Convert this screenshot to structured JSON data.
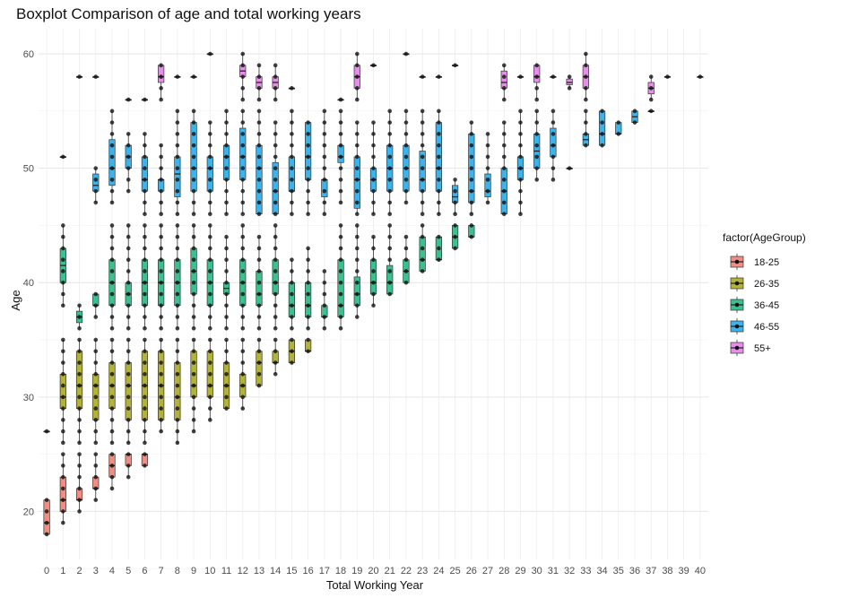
{
  "chart_data": {
    "type": "boxplot",
    "title": "Boxplot Comparison of age and total working years",
    "xlabel": "Total Working Year",
    "ylabel": "Age",
    "x_categories": [
      "0",
      "1",
      "2",
      "3",
      "4",
      "5",
      "6",
      "7",
      "8",
      "9",
      "10",
      "11",
      "12",
      "13",
      "14",
      "15",
      "16",
      "17",
      "18",
      "19",
      "20",
      "21",
      "22",
      "23",
      "24",
      "25",
      "26",
      "27",
      "28",
      "29",
      "30",
      "31",
      "32",
      "33",
      "34",
      "35",
      "36",
      "37",
      "38",
      "39",
      "40"
    ],
    "ylim": [
      15.8,
      62.2
    ],
    "yticks": [
      20,
      30,
      40,
      50,
      60
    ],
    "grid": true,
    "legend": {
      "title": "factor(AgeGroup)",
      "position": "right",
      "entries": [
        {
          "name": "18-25",
          "color": "#F08E86"
        },
        {
          "name": "26-35",
          "color": "#B3B33A"
        },
        {
          "name": "36-45",
          "color": "#3CC08F"
        },
        {
          "name": "46-55",
          "color": "#3DB3EC"
        },
        {
          "name": "55+",
          "color": "#E78EEA"
        }
      ]
    },
    "series": [
      {
        "name": "18-25",
        "boxes": [
          {
            "x": 0,
            "q1": 18,
            "median": 19,
            "q3": 21,
            "lo": 18,
            "hi": 21
          },
          {
            "x": 1,
            "q1": 20,
            "median": 21,
            "q3": 23,
            "lo": 19,
            "hi": 25
          },
          {
            "x": 2,
            "q1": 21,
            "median": 21,
            "q3": 22,
            "lo": 20,
            "hi": 25
          },
          {
            "x": 3,
            "q1": 22,
            "median": 22,
            "q3": 23,
            "lo": 21,
            "hi": 25
          },
          {
            "x": 4,
            "q1": 23,
            "median": 24,
            "q3": 25,
            "lo": 22,
            "hi": 25
          },
          {
            "x": 5,
            "q1": 24,
            "median": 25,
            "q3": 25,
            "lo": 23,
            "hi": 25
          },
          {
            "x": 6,
            "q1": 24,
            "median": 25,
            "q3": 25,
            "lo": 24,
            "hi": 25
          }
        ]
      },
      {
        "name": "26-35",
        "boxes": [
          {
            "x": 0,
            "q1": 27,
            "median": 27,
            "q3": 27,
            "lo": 27,
            "hi": 27
          },
          {
            "x": 1,
            "q1": 29,
            "median": 30,
            "q3": 32,
            "lo": 26,
            "hi": 35
          },
          {
            "x": 2,
            "q1": 29,
            "median": 31,
            "q3": 34,
            "lo": 26,
            "hi": 35
          },
          {
            "x": 3,
            "q1": 28,
            "median": 31,
            "q3": 32,
            "lo": 26,
            "hi": 35
          },
          {
            "x": 4,
            "q1": 29,
            "median": 31,
            "q3": 33,
            "lo": 26,
            "hi": 35
          },
          {
            "x": 5,
            "q1": 28,
            "median": 31,
            "q3": 33,
            "lo": 26,
            "hi": 35
          },
          {
            "x": 6,
            "q1": 28,
            "median": 31,
            "q3": 34,
            "lo": 26,
            "hi": 35
          },
          {
            "x": 7,
            "q1": 28,
            "median": 31,
            "q3": 34,
            "lo": 27,
            "hi": 35
          },
          {
            "x": 8,
            "q1": 28,
            "median": 30,
            "q3": 33,
            "lo": 26,
            "hi": 35
          },
          {
            "x": 9,
            "q1": 30,
            "median": 31,
            "q3": 34,
            "lo": 27,
            "hi": 35
          },
          {
            "x": 10,
            "q1": 30,
            "median": 31,
            "q3": 34,
            "lo": 28,
            "hi": 35
          },
          {
            "x": 11,
            "q1": 29,
            "median": 31,
            "q3": 33,
            "lo": 29,
            "hi": 35
          },
          {
            "x": 12,
            "q1": 30,
            "median": 31,
            "q3": 32,
            "lo": 29,
            "hi": 35
          },
          {
            "x": 13,
            "q1": 31,
            "median": 33,
            "q3": 34,
            "lo": 31,
            "hi": 35
          },
          {
            "x": 14,
            "q1": 33,
            "median": 33,
            "q3": 34,
            "lo": 32,
            "hi": 35
          },
          {
            "x": 15,
            "q1": 33,
            "median": 34,
            "q3": 35,
            "lo": 33,
            "hi": 35
          },
          {
            "x": 16,
            "q1": 34,
            "median": 34,
            "q3": 35,
            "lo": 34,
            "hi": 35
          }
        ]
      },
      {
        "name": "36-45",
        "boxes": [
          {
            "x": 1,
            "q1": 40,
            "median": 41.5,
            "q3": 43,
            "lo": 38,
            "hi": 45
          },
          {
            "x": 2,
            "q1": 36.5,
            "median": 37,
            "q3": 37.5,
            "lo": 36,
            "hi": 38
          },
          {
            "x": 3,
            "q1": 38,
            "median": 38,
            "q3": 39,
            "lo": 37,
            "hi": 39
          },
          {
            "x": 4,
            "q1": 38,
            "median": 40,
            "q3": 42,
            "lo": 36,
            "hi": 45
          },
          {
            "x": 5,
            "q1": 38,
            "median": 39,
            "q3": 40,
            "lo": 36,
            "hi": 45
          },
          {
            "x": 6,
            "q1": 38,
            "median": 40,
            "q3": 42,
            "lo": 36,
            "hi": 45
          },
          {
            "x": 7,
            "q1": 38,
            "median": 40,
            "q3": 42,
            "lo": 36,
            "hi": 45
          },
          {
            "x": 8,
            "q1": 38,
            "median": 40,
            "q3": 42,
            "lo": 36,
            "hi": 45
          },
          {
            "x": 9,
            "q1": 39,
            "median": 41,
            "q3": 43,
            "lo": 36,
            "hi": 45
          },
          {
            "x": 10,
            "q1": 38,
            "median": 40,
            "q3": 42,
            "lo": 36,
            "hi": 45
          },
          {
            "x": 11,
            "q1": 39,
            "median": 39.5,
            "q3": 40,
            "lo": 36,
            "hi": 44
          },
          {
            "x": 12,
            "q1": 38,
            "median": 40,
            "q3": 42,
            "lo": 36,
            "hi": 45
          },
          {
            "x": 13,
            "q1": 38,
            "median": 39,
            "q3": 41,
            "lo": 36,
            "hi": 44
          },
          {
            "x": 14,
            "q1": 39,
            "median": 40,
            "q3": 42,
            "lo": 36,
            "hi": 45
          },
          {
            "x": 15,
            "q1": 37,
            "median": 38,
            "q3": 40,
            "lo": 36,
            "hi": 42
          },
          {
            "x": 16,
            "q1": 37,
            "median": 38,
            "q3": 40,
            "lo": 36,
            "hi": 43
          },
          {
            "x": 17,
            "q1": 37,
            "median": 37,
            "q3": 38,
            "lo": 36,
            "hi": 41
          },
          {
            "x": 18,
            "q1": 37,
            "median": 38,
            "q3": 42,
            "lo": 36,
            "hi": 45
          },
          {
            "x": 19,
            "q1": 38,
            "median": 39,
            "q3": 40.5,
            "lo": 37,
            "hi": 45
          },
          {
            "x": 20,
            "q1": 39,
            "median": 40,
            "q3": 42,
            "lo": 38,
            "hi": 44
          },
          {
            "x": 21,
            "q1": 39,
            "median": 40,
            "q3": 41.5,
            "lo": 39,
            "hi": 45
          },
          {
            "x": 22,
            "q1": 40,
            "median": 41,
            "q3": 42,
            "lo": 40,
            "hi": 44
          },
          {
            "x": 23,
            "q1": 41,
            "median": 42,
            "q3": 44,
            "lo": 41,
            "hi": 45
          },
          {
            "x": 24,
            "q1": 42,
            "median": 42,
            "q3": 44,
            "lo": 42,
            "hi": 44
          },
          {
            "x": 25,
            "q1": 43,
            "median": 44,
            "q3": 45,
            "lo": 43,
            "hi": 45
          },
          {
            "x": 26,
            "q1": 44,
            "median": 44,
            "q3": 45,
            "lo": 44,
            "hi": 45
          }
        ]
      },
      {
        "name": "46-55",
        "boxes": [
          {
            "x": 1,
            "q1": 51,
            "median": 51,
            "q3": 51,
            "lo": 51,
            "hi": 51
          },
          {
            "x": 3,
            "q1": 48,
            "median": 48.5,
            "q3": 49.5,
            "lo": 47,
            "hi": 50
          },
          {
            "x": 4,
            "q1": 48.5,
            "median": 50,
            "q3": 52.5,
            "lo": 47,
            "hi": 55
          },
          {
            "x": 5,
            "q1": 50,
            "median": 51,
            "q3": 52,
            "lo": 48,
            "hi": 53
          },
          {
            "x": 6,
            "q1": 48,
            "median": 49,
            "q3": 51,
            "lo": 46,
            "hi": 53
          },
          {
            "x": 7,
            "q1": 48,
            "median": 49,
            "q3": 49,
            "lo": 46,
            "hi": 52
          },
          {
            "x": 8,
            "q1": 47.5,
            "median": 49.5,
            "q3": 51,
            "lo": 46,
            "hi": 55
          },
          {
            "x": 9,
            "q1": 48,
            "median": 50,
            "q3": 54,
            "lo": 46,
            "hi": 55
          },
          {
            "x": 10,
            "q1": 48,
            "median": 50,
            "q3": 51,
            "lo": 46,
            "hi": 54
          },
          {
            "x": 11,
            "q1": 49,
            "median": 51,
            "q3": 52,
            "lo": 46,
            "hi": 55
          },
          {
            "x": 12,
            "q1": 49,
            "median": 51,
            "q3": 53.5,
            "lo": 46,
            "hi": 55
          },
          {
            "x": 13,
            "q1": 46,
            "median": 50,
            "q3": 52,
            "lo": 46,
            "hi": 55
          },
          {
            "x": 14,
            "q1": 46,
            "median": 48,
            "q3": 50.5,
            "lo": 46,
            "hi": 54
          },
          {
            "x": 15,
            "q1": 48,
            "median": 48,
            "q3": 51,
            "lo": 46,
            "hi": 55
          },
          {
            "x": 16,
            "q1": 49,
            "median": 51,
            "q3": 54,
            "lo": 46,
            "hi": 54
          },
          {
            "x": 17,
            "q1": 47.5,
            "median": 49,
            "q3": 49,
            "lo": 46,
            "hi": 55
          },
          {
            "x": 18,
            "q1": 50.5,
            "median": 51,
            "q3": 52,
            "lo": 47,
            "hi": 55
          },
          {
            "x": 19,
            "q1": 46.5,
            "median": 49,
            "q3": 51,
            "lo": 46,
            "hi": 54
          },
          {
            "x": 20,
            "q1": 48,
            "median": 49,
            "q3": 50,
            "lo": 46,
            "hi": 54
          },
          {
            "x": 21,
            "q1": 48,
            "median": 50,
            "q3": 52,
            "lo": 46,
            "hi": 55
          },
          {
            "x": 22,
            "q1": 48,
            "median": 50,
            "q3": 52,
            "lo": 47,
            "hi": 55
          },
          {
            "x": 23,
            "q1": 48,
            "median": 49,
            "q3": 51.5,
            "lo": 46,
            "hi": 55
          },
          {
            "x": 24,
            "q1": 48,
            "median": 50,
            "q3": 54,
            "lo": 46,
            "hi": 55
          },
          {
            "x": 25,
            "q1": 47,
            "median": 47.5,
            "q3": 48.5,
            "lo": 46,
            "hi": 49
          },
          {
            "x": 26,
            "q1": 47,
            "median": 48,
            "q3": 53,
            "lo": 46,
            "hi": 54
          },
          {
            "x": 27,
            "q1": 47.5,
            "median": 48,
            "q3": 49.5,
            "lo": 47,
            "hi": 53
          },
          {
            "x": 28,
            "q1": 46,
            "median": 48,
            "q3": 50,
            "lo": 46,
            "hi": 54
          },
          {
            "x": 29,
            "q1": 49,
            "median": 50,
            "q3": 51,
            "lo": 46,
            "hi": 55
          },
          {
            "x": 30,
            "q1": 50,
            "median": 51.5,
            "q3": 53,
            "lo": 49,
            "hi": 55
          },
          {
            "x": 31,
            "q1": 51,
            "median": 52,
            "q3": 53.5,
            "lo": 49,
            "hi": 55
          },
          {
            "x": 32,
            "q1": 50,
            "median": 50,
            "q3": 50,
            "lo": 50,
            "hi": 50
          },
          {
            "x": 33,
            "q1": 52,
            "median": 52.5,
            "q3": 53,
            "lo": 52,
            "hi": 55
          },
          {
            "x": 34,
            "q1": 52,
            "median": 53,
            "q3": 55,
            "lo": 52,
            "hi": 55
          },
          {
            "x": 35,
            "q1": 53,
            "median": 53,
            "q3": 54,
            "lo": 53,
            "hi": 54
          },
          {
            "x": 36,
            "q1": 54,
            "median": 54.5,
            "q3": 55,
            "lo": 54,
            "hi": 55
          },
          {
            "x": 37,
            "q1": 55,
            "median": 55,
            "q3": 55,
            "lo": 55,
            "hi": 55
          }
        ]
      },
      {
        "name": "55+",
        "boxes": [
          {
            "x": 2,
            "q1": 58,
            "median": 58,
            "q3": 58,
            "lo": 58,
            "hi": 58
          },
          {
            "x": 3,
            "q1": 58,
            "median": 58,
            "q3": 58,
            "lo": 58,
            "hi": 58
          },
          {
            "x": 5,
            "q1": 56,
            "median": 56,
            "q3": 56,
            "lo": 56,
            "hi": 56
          },
          {
            "x": 6,
            "q1": 56,
            "median": 56,
            "q3": 56,
            "lo": 56,
            "hi": 56
          },
          {
            "x": 7,
            "q1": 57.5,
            "median": 58,
            "q3": 59,
            "lo": 56,
            "hi": 59
          },
          {
            "x": 8,
            "q1": 58,
            "median": 58,
            "q3": 58,
            "lo": 58,
            "hi": 58
          },
          {
            "x": 9,
            "q1": 58,
            "median": 58,
            "q3": 58,
            "lo": 58,
            "hi": 58
          },
          {
            "x": 10,
            "q1": 60,
            "median": 60,
            "q3": 60,
            "lo": 60,
            "hi": 60
          },
          {
            "x": 12,
            "q1": 58,
            "median": 58.5,
            "q3": 59,
            "lo": 56,
            "hi": 60
          },
          {
            "x": 13,
            "q1": 57,
            "median": 57.5,
            "q3": 58,
            "lo": 56,
            "hi": 59
          },
          {
            "x": 14,
            "q1": 57,
            "median": 57.5,
            "q3": 58,
            "lo": 56,
            "hi": 59
          },
          {
            "x": 15,
            "q1": 57,
            "median": 57,
            "q3": 57,
            "lo": 57,
            "hi": 57
          },
          {
            "x": 18,
            "q1": 56,
            "median": 56,
            "q3": 56,
            "lo": 56,
            "hi": 56
          },
          {
            "x": 19,
            "q1": 57,
            "median": 58,
            "q3": 59,
            "lo": 56,
            "hi": 60
          },
          {
            "x": 20,
            "q1": 59,
            "median": 59,
            "q3": 59,
            "lo": 59,
            "hi": 59
          },
          {
            "x": 22,
            "q1": 60,
            "median": 60,
            "q3": 60,
            "lo": 60,
            "hi": 60
          },
          {
            "x": 23,
            "q1": 58,
            "median": 58,
            "q3": 58,
            "lo": 58,
            "hi": 58
          },
          {
            "x": 24,
            "q1": 58,
            "median": 58,
            "q3": 58,
            "lo": 58,
            "hi": 58
          },
          {
            "x": 25,
            "q1": 59,
            "median": 59,
            "q3": 59,
            "lo": 59,
            "hi": 59
          },
          {
            "x": 28,
            "q1": 57,
            "median": 57.5,
            "q3": 58.5,
            "lo": 56,
            "hi": 59
          },
          {
            "x": 29,
            "q1": 58,
            "median": 58,
            "q3": 58,
            "lo": 58,
            "hi": 58
          },
          {
            "x": 30,
            "q1": 57.5,
            "median": 58,
            "q3": 59,
            "lo": 56,
            "hi": 59
          },
          {
            "x": 31,
            "q1": 58,
            "median": 58,
            "q3": 58,
            "lo": 58,
            "hi": 58
          },
          {
            "x": 32,
            "q1": 57.3,
            "median": 57.5,
            "q3": 57.8,
            "lo": 57,
            "hi": 58
          },
          {
            "x": 33,
            "q1": 57,
            "median": 58,
            "q3": 59,
            "lo": 56,
            "hi": 60
          },
          {
            "x": 37,
            "q1": 56.5,
            "median": 57,
            "q3": 57.5,
            "lo": 56,
            "hi": 58
          },
          {
            "x": 38,
            "q1": 58,
            "median": 58,
            "q3": 58,
            "lo": 58,
            "hi": 58
          },
          {
            "x": 40,
            "q1": 58,
            "median": 58,
            "q3": 58,
            "lo": 58,
            "hi": 58
          }
        ]
      }
    ]
  }
}
